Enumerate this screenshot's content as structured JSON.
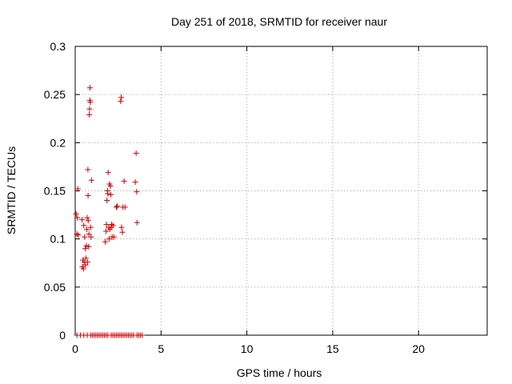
{
  "chart_data": {
    "type": "scatter",
    "title": "Day 251 of 2018, SRMTID for receiver naur",
    "xlabel": "GPS time / hours",
    "ylabel": "SRMTID / TECUs",
    "xlim": [
      0,
      24
    ],
    "ylim": [
      0,
      0.3
    ],
    "x_ticks": [
      0,
      5,
      10,
      15,
      20
    ],
    "x_tick_labels": [
      "0",
      "5",
      "10",
      "15",
      "20"
    ],
    "y_ticks": [
      0,
      0.05,
      0.1,
      0.15,
      0.2,
      0.25,
      0.3
    ],
    "y_tick_labels": [
      "0",
      "0.05",
      "0.1",
      "0.15",
      "0.2",
      "0.25",
      "0.3"
    ],
    "grid": true,
    "marker": "plus",
    "series": [
      {
        "name": "SRMTID",
        "color": "#cc0000",
        "points": [
          [
            0.05,
            0.126
          ],
          [
            0.1,
            0.105
          ],
          [
            0.12,
            0.122
          ],
          [
            0.15,
            0.152
          ],
          [
            0.18,
            0.104
          ],
          [
            0.4,
            0.12
          ],
          [
            0.42,
            0.071
          ],
          [
            0.45,
            0.078
          ],
          [
            0.48,
            0.069
          ],
          [
            0.5,
            0.114
          ],
          [
            0.52,
            0.076
          ],
          [
            0.55,
            0.102
          ],
          [
            0.58,
            0.09
          ],
          [
            0.6,
            0.073
          ],
          [
            0.62,
            0.08
          ],
          [
            0.65,
            0.093
          ],
          [
            0.68,
            0.11
          ],
          [
            0.7,
            0.122
          ],
          [
            0.72,
            0.076
          ],
          [
            0.74,
            0.172
          ],
          [
            0.75,
            0.145
          ],
          [
            0.76,
            0.119
          ],
          [
            0.78,
            0.092
          ],
          [
            0.8,
            0.105
          ],
          [
            0.82,
            0.229
          ],
          [
            0.84,
            0.235
          ],
          [
            0.85,
            0.244
          ],
          [
            0.86,
            0.257
          ],
          [
            0.88,
            0.242
          ],
          [
            0.9,
            0.112
          ],
          [
            0.92,
            0.102
          ],
          [
            0.95,
            0.161
          ],
          [
            1.75,
            0.097
          ],
          [
            1.8,
            0.108
          ],
          [
            1.82,
            0.115
          ],
          [
            1.85,
            0.14
          ],
          [
            1.88,
            0.15
          ],
          [
            1.9,
            0.147
          ],
          [
            1.92,
            0.169
          ],
          [
            1.95,
            0.112
          ],
          [
            1.97,
            0.1
          ],
          [
            2.0,
            0.157
          ],
          [
            2.02,
            0.11
          ],
          [
            2.05,
            0.155
          ],
          [
            2.08,
            0.146
          ],
          [
            2.1,
            0.112
          ],
          [
            2.12,
            0.115
          ],
          [
            2.15,
            0.102
          ],
          [
            2.2,
            0.114
          ],
          [
            2.25,
            0.102
          ],
          [
            2.4,
            0.133
          ],
          [
            2.45,
            0.134
          ],
          [
            2.65,
            0.243
          ],
          [
            2.68,
            0.247
          ],
          [
            2.7,
            0.112
          ],
          [
            2.75,
            0.107
          ],
          [
            2.78,
            0.133
          ],
          [
            2.85,
            0.16
          ],
          [
            2.9,
            0.133
          ],
          [
            3.5,
            0.159
          ],
          [
            3.55,
            0.189
          ],
          [
            3.58,
            0.149
          ],
          [
            3.6,
            0.117
          ]
        ],
        "zero_points_x": [
          0.1,
          0.3,
          0.5,
          0.7,
          0.9,
          1.0,
          1.1,
          1.2,
          1.3,
          1.4,
          1.5,
          1.6,
          1.7,
          1.8,
          1.9,
          2.1,
          2.2,
          2.3,
          2.4,
          2.5,
          2.6,
          2.7,
          2.8,
          2.9,
          3.0,
          3.1,
          3.2,
          3.3,
          3.4,
          3.6,
          3.7,
          3.8,
          3.9
        ]
      }
    ]
  }
}
